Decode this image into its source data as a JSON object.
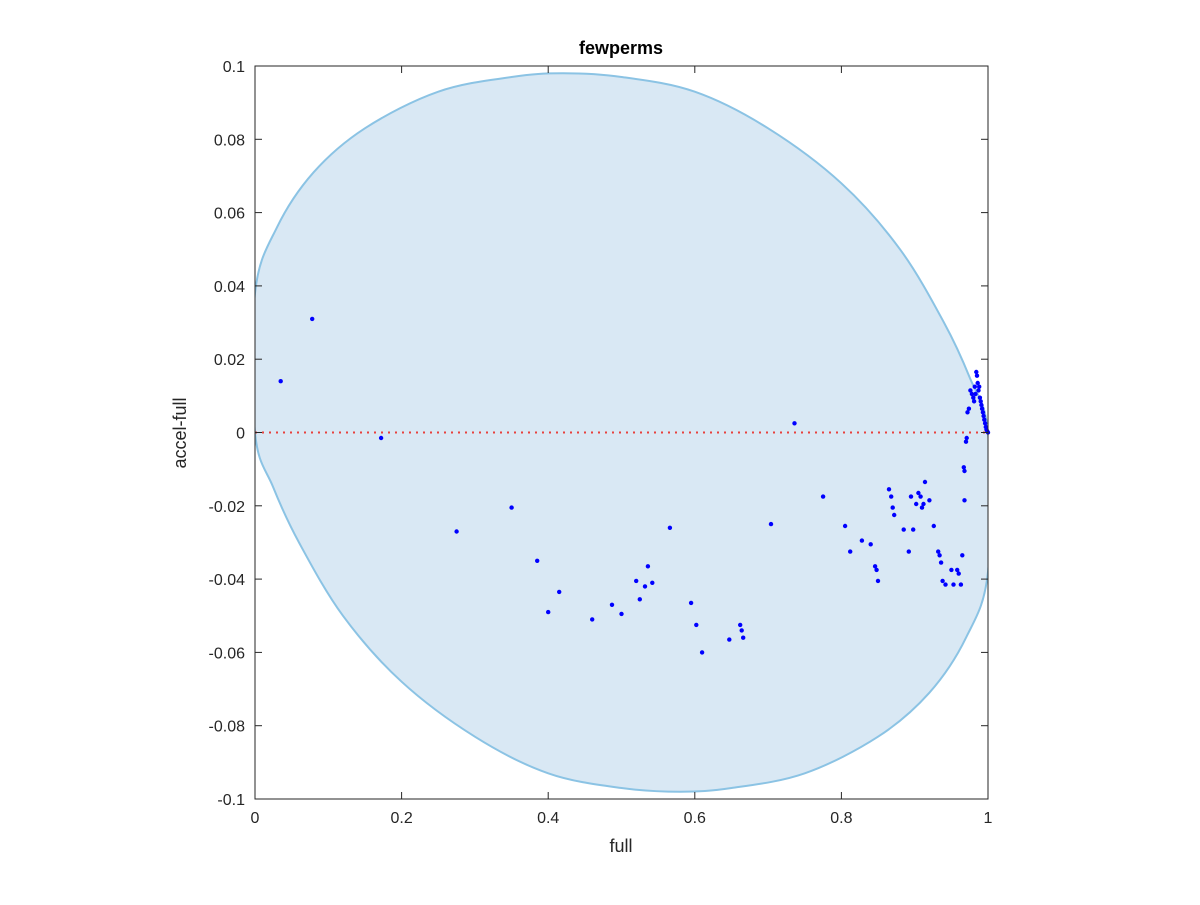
{
  "chart_data": {
    "type": "scatter",
    "title": "fewperms",
    "xlabel": "full",
    "ylabel": "accel-full",
    "xlim": [
      0,
      1
    ],
    "ylim": [
      -0.1,
      0.1
    ],
    "xticks": [
      0,
      0.2,
      0.4,
      0.6,
      0.8,
      1
    ],
    "xtick_labels": [
      "0",
      "0.2",
      "0.4",
      "0.6",
      "0.8",
      "1"
    ],
    "yticks": [
      -0.1,
      -0.08,
      -0.06,
      -0.04,
      -0.02,
      0,
      0.02,
      0.04,
      0.06,
      0.08,
      0.1
    ],
    "ytick_labels": [
      "-0.1",
      "-0.08",
      "-0.06",
      "-0.04",
      "-0.02",
      "0",
      "0.02",
      "0.04",
      "0.06",
      "0.08",
      "0.1"
    ],
    "grid": false,
    "reference_line": {
      "y": 0,
      "style": "dotted",
      "color": "#e8413d"
    },
    "region": {
      "shape": "ellipse",
      "fill": "#d9e8f4",
      "stroke": "#8bc3e4",
      "boundary": [
        [
          0.0,
          0.0
        ],
        [
          0.0,
          0.038
        ],
        [
          0.03,
          0.056
        ],
        [
          0.08,
          0.071
        ],
        [
          0.15,
          0.083
        ],
        [
          0.25,
          0.093
        ],
        [
          0.35,
          0.097
        ],
        [
          0.42,
          0.098
        ],
        [
          0.5,
          0.097
        ],
        [
          0.6,
          0.093
        ],
        [
          0.7,
          0.083
        ],
        [
          0.8,
          0.068
        ],
        [
          0.88,
          0.05
        ],
        [
          0.94,
          0.03
        ],
        [
          0.975,
          0.015
        ],
        [
          1.0,
          0.0
        ],
        [
          1.0,
          -0.038
        ],
        [
          0.97,
          -0.056
        ],
        [
          0.92,
          -0.071
        ],
        [
          0.85,
          -0.083
        ],
        [
          0.75,
          -0.093
        ],
        [
          0.65,
          -0.097
        ],
        [
          0.58,
          -0.098
        ],
        [
          0.5,
          -0.097
        ],
        [
          0.4,
          -0.093
        ],
        [
          0.3,
          -0.083
        ],
        [
          0.2,
          -0.068
        ],
        [
          0.12,
          -0.05
        ],
        [
          0.06,
          -0.03
        ],
        [
          0.025,
          -0.015
        ],
        [
          0.0,
          0.0
        ]
      ]
    },
    "series": [
      {
        "color": "#0000ff",
        "points": [
          [
            0.035,
            0.014
          ],
          [
            0.078,
            0.031
          ],
          [
            0.172,
            -0.0015
          ],
          [
            0.275,
            -0.027
          ],
          [
            0.35,
            -0.0205
          ],
          [
            0.385,
            -0.035
          ],
          [
            0.4,
            -0.049
          ],
          [
            0.415,
            -0.0435
          ],
          [
            0.46,
            -0.051
          ],
          [
            0.487,
            -0.047
          ],
          [
            0.5,
            -0.0495
          ],
          [
            0.52,
            -0.0405
          ],
          [
            0.525,
            -0.0455
          ],
          [
            0.532,
            -0.042
          ],
          [
            0.536,
            -0.0365
          ],
          [
            0.542,
            -0.041
          ],
          [
            0.566,
            -0.026
          ],
          [
            0.595,
            -0.0465
          ],
          [
            0.602,
            -0.0525
          ],
          [
            0.61,
            -0.06
          ],
          [
            0.647,
            -0.0565
          ],
          [
            0.662,
            -0.0525
          ],
          [
            0.664,
            -0.054
          ],
          [
            0.666,
            -0.056
          ],
          [
            0.704,
            -0.025
          ],
          [
            0.736,
            0.0025
          ],
          [
            0.775,
            -0.0175
          ],
          [
            0.805,
            -0.0255
          ],
          [
            0.812,
            -0.0325
          ],
          [
            0.828,
            -0.0295
          ],
          [
            0.84,
            -0.0305
          ],
          [
            0.846,
            -0.0365
          ],
          [
            0.848,
            -0.0375
          ],
          [
            0.85,
            -0.0405
          ],
          [
            0.865,
            -0.0155
          ],
          [
            0.868,
            -0.0175
          ],
          [
            0.87,
            -0.0205
          ],
          [
            0.872,
            -0.0225
          ],
          [
            0.885,
            -0.0265
          ],
          [
            0.892,
            -0.0325
          ],
          [
            0.895,
            -0.0175
          ],
          [
            0.898,
            -0.0265
          ],
          [
            0.902,
            -0.0195
          ],
          [
            0.905,
            -0.0165
          ],
          [
            0.908,
            -0.0175
          ],
          [
            0.91,
            -0.0205
          ],
          [
            0.912,
            -0.0195
          ],
          [
            0.914,
            -0.0135
          ],
          [
            0.92,
            -0.0185
          ],
          [
            0.926,
            -0.0255
          ],
          [
            0.932,
            -0.0325
          ],
          [
            0.934,
            -0.0335
          ],
          [
            0.936,
            -0.0355
          ],
          [
            0.938,
            -0.0405
          ],
          [
            0.942,
            -0.0415
          ],
          [
            0.95,
            -0.0375
          ],
          [
            0.953,
            -0.0415
          ],
          [
            0.958,
            -0.0375
          ],
          [
            0.96,
            -0.0385
          ],
          [
            0.963,
            -0.0415
          ],
          [
            0.965,
            -0.0335
          ],
          [
            0.968,
            -0.0185
          ],
          [
            0.967,
            -0.0095
          ],
          [
            0.968,
            -0.0105
          ],
          [
            0.97,
            -0.0025
          ],
          [
            0.971,
            -0.0015
          ],
          [
            0.972,
            0.0055
          ],
          [
            0.974,
            0.0065
          ],
          [
            0.976,
            0.0115
          ],
          [
            0.978,
            0.0105
          ],
          [
            0.98,
            0.0095
          ],
          [
            0.981,
            0.0085
          ],
          [
            0.982,
            0.0125
          ],
          [
            0.983,
            0.0105
          ],
          [
            0.984,
            0.0165
          ],
          [
            0.985,
            0.0155
          ],
          [
            0.986,
            0.0135
          ],
          [
            0.987,
            0.0115
          ],
          [
            0.988,
            0.0125
          ],
          [
            0.989,
            0.0095
          ],
          [
            0.99,
            0.0085
          ],
          [
            0.991,
            0.0075
          ],
          [
            0.992,
            0.0065
          ],
          [
            0.993,
            0.0055
          ],
          [
            0.994,
            0.0045
          ],
          [
            0.995,
            0.0035
          ],
          [
            0.996,
            0.0025
          ],
          [
            0.997,
            0.0015
          ],
          [
            0.998,
            0.0008
          ],
          [
            0.999,
            0.0003
          ],
          [
            1.0,
            0.0
          ]
        ]
      }
    ]
  }
}
